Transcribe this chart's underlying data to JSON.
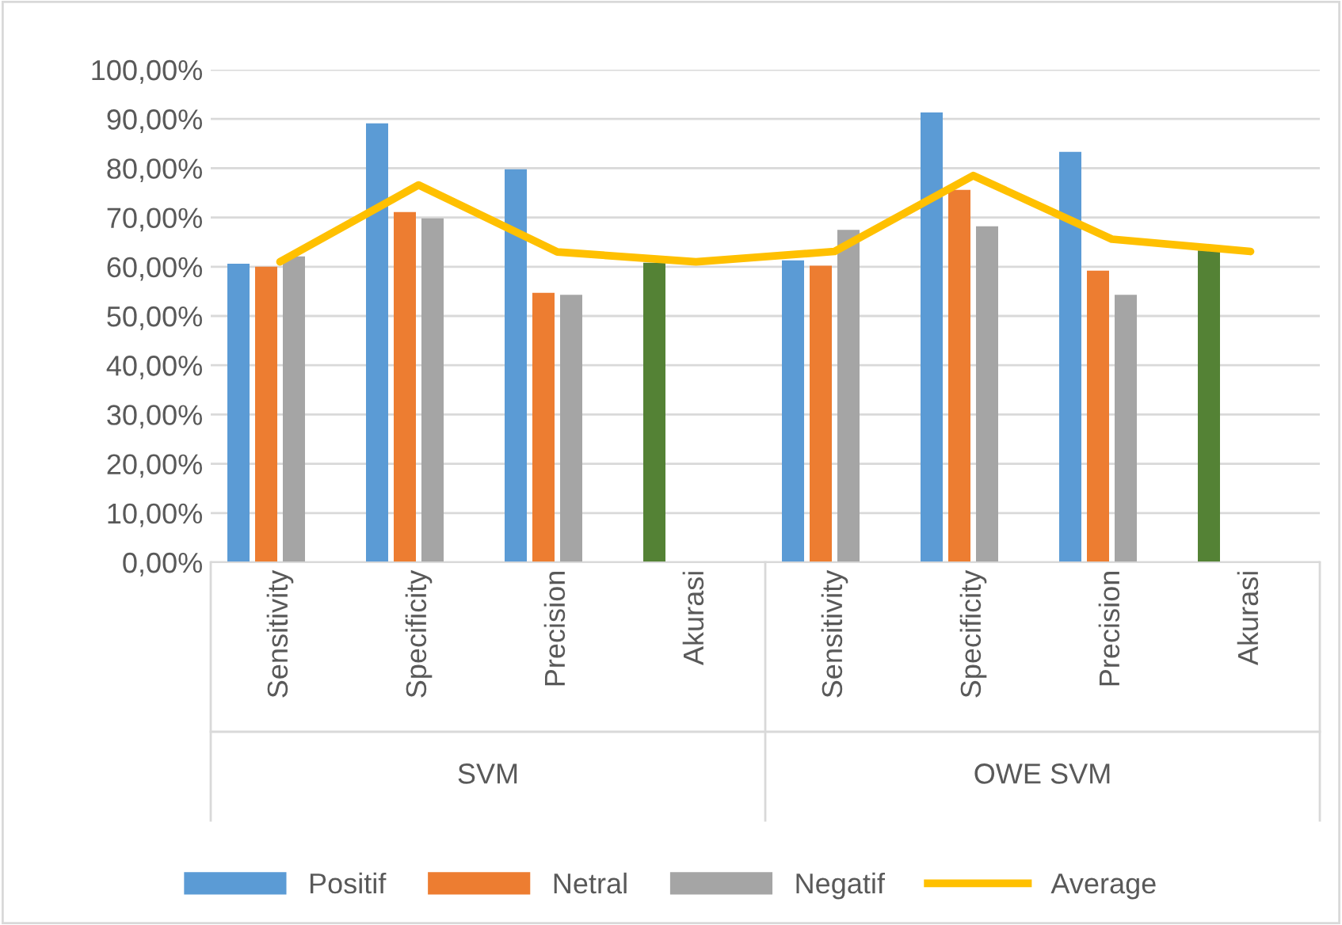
{
  "chart_data": {
    "type": "bar",
    "categories": [
      "Sensitivity",
      "Specificity",
      "Precision",
      "Akurasi",
      "Sensitivity",
      "Specificity",
      "Precision",
      "Akurasi"
    ],
    "series": [
      {
        "name": "Positif",
        "color": "#5b9bd5",
        "colors": [
          "#5b9bd5",
          "#5b9bd5",
          "#5b9bd5",
          "#548235",
          "#5b9bd5",
          "#5b9bd5",
          "#5b9bd5",
          "#548235"
        ],
        "values": [
          60.6,
          89.1,
          79.8,
          60.8,
          61.3,
          91.3,
          83.3,
          63.3
        ]
      },
      {
        "name": "Netral",
        "color": "#ed7d31",
        "values": [
          60.0,
          71.1,
          54.7,
          null,
          60.2,
          75.6,
          59.2,
          null
        ]
      },
      {
        "name": "Negatif",
        "color": "#a5a5a5",
        "values": [
          62.1,
          69.8,
          54.3,
          null,
          67.5,
          68.2,
          54.3,
          null
        ]
      },
      {
        "name": "Average",
        "type": "line",
        "color": "#ffc000",
        "values": [
          61.0,
          76.6,
          63.0,
          61.0,
          63.1,
          78.5,
          65.6,
          63.1
        ]
      }
    ],
    "annotations": [
      "SVM",
      "OWE SVM"
    ],
    "ylim": [
      0,
      100
    ],
    "yticks": [
      {
        "value": 0,
        "label": "0,00%"
      },
      {
        "value": 10,
        "label": "10,00%"
      },
      {
        "value": 20,
        "label": "20,00%"
      },
      {
        "value": 30,
        "label": "30,00%"
      },
      {
        "value": 40,
        "label": "40,00%"
      },
      {
        "value": 50,
        "label": "50,00%"
      },
      {
        "value": 60,
        "label": "60,00%"
      },
      {
        "value": 70,
        "label": "70,00%"
      },
      {
        "value": 80,
        "label": "80,00%"
      },
      {
        "value": 90,
        "label": "90,00%"
      },
      {
        "value": 100,
        "label": "100,00%"
      }
    ],
    "grid": "y",
    "legend": "bottom"
  }
}
